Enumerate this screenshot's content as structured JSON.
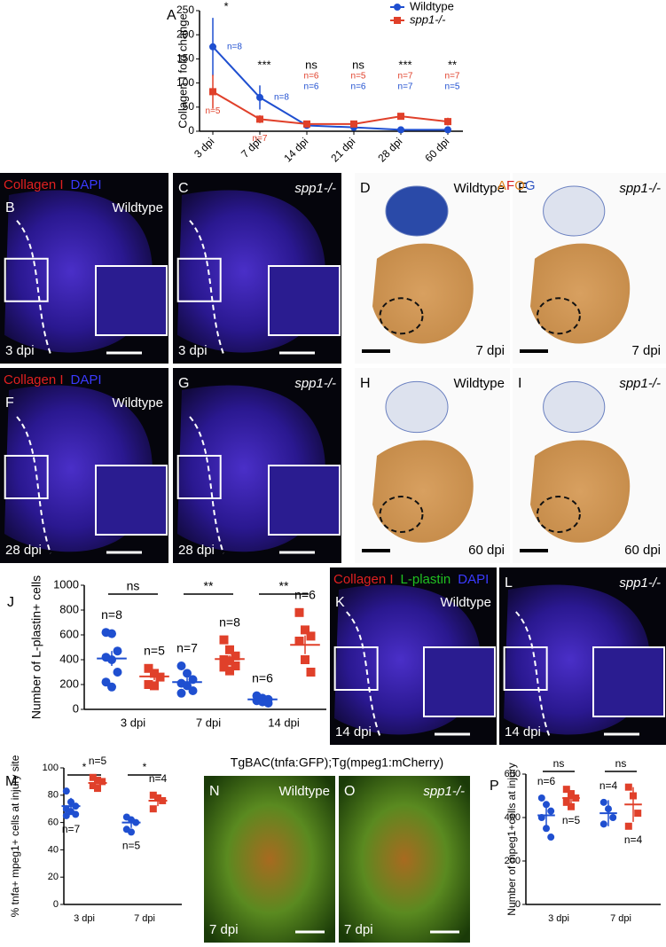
{
  "figure": {
    "afog": [
      {
        "text": "A",
        "color": "#e0801a"
      },
      {
        "text": "F",
        "color": "#d62020"
      },
      {
        "text": "O",
        "color": "#e0801a"
      },
      {
        "text": "G",
        "color": "#2a50c0"
      }
    ],
    "transgenic_header": "TgBAC(tnfa:GFP);Tg(mpeg1:mCherry)",
    "panels": [
      {
        "label": "B",
        "genotype": "Wildtype",
        "time": "3 dpi",
        "stains": [
          {
            "text": "Collagen I",
            "color": "#e02020"
          },
          {
            "text": "DAPI",
            "color": "#3a3aff"
          }
        ]
      },
      {
        "label": "C",
        "genotype": "spp1-/-",
        "time": "3 dpi"
      },
      {
        "label": "D",
        "genotype": "Wildtype",
        "time": "7 dpi"
      },
      {
        "label": "E",
        "genotype": "spp1-/-",
        "time": "7 dpi"
      },
      {
        "label": "F",
        "genotype": "Wildtype",
        "time": "28 dpi",
        "stains": [
          {
            "text": "Collagen I",
            "color": "#e02020"
          },
          {
            "text": "DAPI",
            "color": "#3a3aff"
          }
        ]
      },
      {
        "label": "G",
        "genotype": "spp1-/-",
        "time": "28 dpi"
      },
      {
        "label": "H",
        "genotype": "Wildtype",
        "time": "60 dpi"
      },
      {
        "label": "I",
        "genotype": "spp1-/-",
        "time": "60 dpi"
      },
      {
        "label": "K",
        "genotype": "Wildtype",
        "time": "14 dpi",
        "stains": [
          {
            "text": "Collagen I",
            "color": "#e02020"
          },
          {
            "text": "L-plastin",
            "color": "#20c020"
          },
          {
            "text": "DAPI",
            "color": "#3a3aff"
          }
        ]
      },
      {
        "label": "L",
        "genotype": "spp1-/-",
        "time": "14 dpi"
      },
      {
        "label": "N",
        "genotype": "Wildtype",
        "time": "7 dpi"
      },
      {
        "label": "O",
        "genotype": "spp1-/-",
        "time": "7 dpi"
      }
    ]
  },
  "chart_data": [
    {
      "type": "line",
      "panel_label": "A",
      "ylabel": "Collagen I fold change",
      "categories": [
        "3 dpi",
        "7 dpi",
        "14 dpi",
        "21 dpi",
        "28 dpi",
        "60 dpi"
      ],
      "ylim": [
        0,
        250
      ],
      "yticks": [
        0,
        50,
        100,
        150,
        200,
        250
      ],
      "significance": [
        "*",
        "***",
        "ns",
        "ns",
        "***",
        "**"
      ],
      "series": [
        {
          "name": "Wildtype",
          "color": "#1f4fd0",
          "marker": "circle",
          "values": [
            175,
            70,
            12,
            8,
            3,
            3
          ],
          "errors": [
            60,
            25,
            5,
            4,
            2,
            2
          ],
          "n_labels": [
            "n=8",
            "n=8",
            "n=6",
            "n=6",
            "n=7",
            "n=5"
          ]
        },
        {
          "name": "spp1-/-",
          "color": "#e0402a",
          "marker": "square",
          "values": [
            82,
            25,
            15,
            15,
            31,
            20
          ],
          "errors": [
            35,
            8,
            5,
            5,
            6,
            8
          ],
          "n_labels": [
            "n=5",
            "n=7",
            "n=6",
            "n=5",
            "n=7",
            "n=7"
          ]
        }
      ]
    },
    {
      "type": "scatter",
      "panel_label": "J",
      "ylabel": "Number of L-plastin+ cells",
      "categories": [
        "3 dpi",
        "7 dpi",
        "14 dpi"
      ],
      "ylim": [
        0,
        1000
      ],
      "yticks": [
        0,
        200,
        400,
        600,
        800,
        1000
      ],
      "significance": [
        "ns",
        "**",
        "**"
      ],
      "series": [
        {
          "color": "#1f4fd0",
          "marker": "circle",
          "points": [
            [
              620,
              610,
              470,
              420,
              400,
              300,
              220,
              180
            ],
            [
              350,
              290,
              240,
              210,
              190,
              150,
              130
            ],
            [
              110,
              90,
              80,
              70,
              60,
              50
            ]
          ],
          "means": [
            410,
            220,
            80
          ],
          "errors": [
            60,
            35,
            10
          ],
          "n_labels": [
            "n=8",
            "n=7",
            "n=6"
          ]
        },
        {
          "color": "#e0402a",
          "marker": "square",
          "points": [
            [
              330,
              290,
              260,
              200,
              190
            ],
            [
              560,
              480,
              430,
              400,
              390,
              350,
              340,
              310
            ],
            [
              780,
              640,
              590,
              550,
              400,
              300
            ]
          ],
          "means": [
            265,
            405,
            520
          ],
          "errors": [
            30,
            30,
            75
          ],
          "n_labels": [
            "n=5",
            "n=8",
            "n=6"
          ]
        }
      ]
    },
    {
      "type": "scatter",
      "panel_label": "M",
      "ylabel": "% tnfa+ mpeg1+ cells at injury site",
      "categories": [
        "3 dpi",
        "7 dpi"
      ],
      "ylim": [
        0,
        100
      ],
      "yticks": [
        0,
        20,
        40,
        60,
        80,
        100
      ],
      "significance": [
        "*",
        "*"
      ],
      "series": [
        {
          "color": "#1f4fd0",
          "marker": "circle",
          "points": [
            [
              83,
              75,
              72,
              70,
              68,
              66,
              65
            ],
            [
              64,
              62,
              60,
              55,
              53
            ]
          ],
          "means": [
            72,
            60
          ],
          "errors": [
            6,
            4
          ],
          "n_labels": [
            "n=7",
            "n=5"
          ]
        },
        {
          "color": "#e0402a",
          "marker": "square",
          "points": [
            [
              93,
              91,
              90,
              87,
              85
            ],
            [
              80,
              78,
              76,
              70
            ]
          ],
          "means": [
            89,
            76
          ],
          "errors": [
            3,
            4
          ],
          "n_labels": [
            "n=5",
            "n=4"
          ]
        }
      ]
    },
    {
      "type": "scatter",
      "panel_label": "P",
      "ylabel": "Number of mpeg1+cells at injury",
      "categories": [
        "3 dpi",
        "7 dpi"
      ],
      "ylim": [
        0,
        600
      ],
      "yticks": [
        0,
        200,
        400,
        600
      ],
      "significance": [
        "ns",
        "ns"
      ],
      "series": [
        {
          "color": "#1f4fd0",
          "marker": "circle",
          "points": [
            [
              490,
              460,
              430,
              400,
              350,
              310
            ],
            [
              470,
              440,
              400,
              370
            ]
          ],
          "means": [
            410,
            420
          ],
          "errors": [
            65,
            60
          ],
          "n_labels": [
            "n=6",
            "n=4"
          ]
        },
        {
          "color": "#e0402a",
          "marker": "square",
          "points": [
            [
              530,
              510,
              490,
              470,
              450
            ],
            [
              540,
              500,
              420,
              360
            ]
          ],
          "means": [
            490,
            460
          ],
          "errors": [
            35,
            80
          ],
          "n_labels": [
            "n=5",
            "n=4"
          ]
        }
      ]
    }
  ]
}
